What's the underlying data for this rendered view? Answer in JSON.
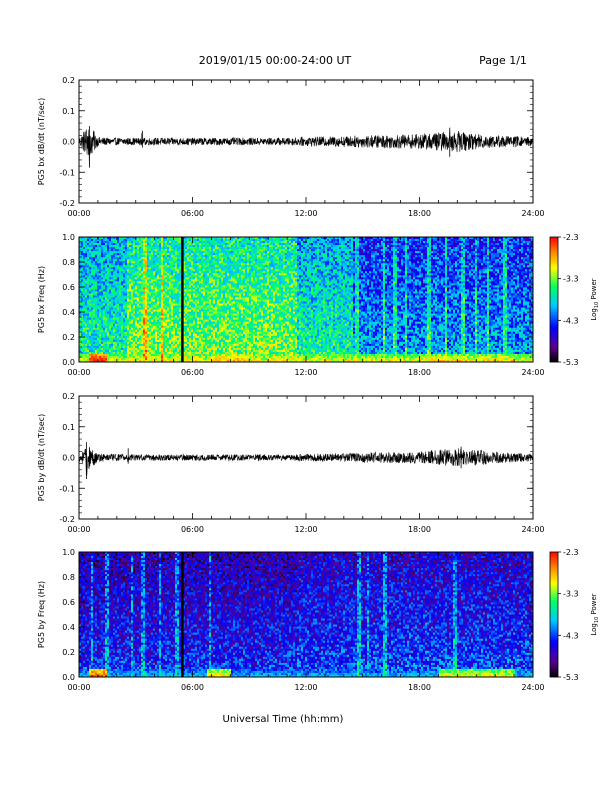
{
  "header": {
    "title": "2019/01/15  00:00-24:00 UT",
    "page": "Page 1/1"
  },
  "x_axis": {
    "label": "Universal Time (hh:mm)",
    "ticks": [
      "00:00",
      "06:00",
      "12:00",
      "18:00",
      "24:00"
    ],
    "range_hours": [
      0,
      24
    ]
  },
  "colorbar": {
    "label": "Log10 Power",
    "label_base": "Log",
    "label_sub": "10",
    "label_rest": " Power",
    "ticks": [
      "-2.3",
      "-3.3",
      "-4.3",
      "-5.3"
    ],
    "range": [
      -5.3,
      -2.3
    ],
    "colormap": [
      "#000000",
      "#5a008c",
      "#0000ff",
      "#00c8ff",
      "#00ff64",
      "#ffff00",
      "#ff8c00",
      "#ff0000"
    ]
  },
  "chart_data": [
    {
      "type": "line",
      "ylabel": "PG5 bx dB/dt (nT/sec)",
      "yticks": [
        "0.2",
        "0.1",
        "0.0",
        "-0.1",
        "-0.2"
      ],
      "ylim": [
        -0.2,
        0.2
      ],
      "x_hours": [
        0,
        0.5,
        1,
        1.5,
        2,
        3,
        4,
        5,
        6,
        7,
        8,
        9,
        10,
        11,
        12,
        13,
        14,
        15,
        16,
        17,
        18,
        19,
        20,
        21,
        22,
        23,
        24
      ],
      "amplitude": [
        0.012,
        0.06,
        0.015,
        0.012,
        0.012,
        0.012,
        0.012,
        0.012,
        0.012,
        0.012,
        0.012,
        0.012,
        0.012,
        0.012,
        0.015,
        0.016,
        0.018,
        0.02,
        0.022,
        0.022,
        0.025,
        0.03,
        0.035,
        0.025,
        0.02,
        0.018,
        0.015
      ],
      "spikes": [
        {
          "x": 0.55,
          "y_min": -0.085,
          "y_max": 0.05
        },
        {
          "x": 3.35,
          "y_min": -0.02,
          "y_max": 0.035
        },
        {
          "x": 19.6,
          "y_min": -0.05,
          "y_max": 0.045
        }
      ]
    },
    {
      "type": "heatmap",
      "ylabel": "PG5 bx Freq (Hz)",
      "yticks": [
        "1.0",
        "0.8",
        "0.6",
        "0.4",
        "0.2",
        "0.0"
      ],
      "ylim": [
        0,
        1.0
      ],
      "data_gap_hours": [
        5.4,
        5.5
      ],
      "background_level": -3.6,
      "band_boosts": [
        {
          "x_from": 2.5,
          "x_to": 11.5,
          "level": -3.3
        },
        {
          "x_from": 11.5,
          "x_to": 14.5,
          "level": -3.6
        },
        {
          "x_from": 14.5,
          "x_to": 24,
          "level": -4.0
        }
      ],
      "low_freq_enhancement": [
        {
          "x_from": 0.5,
          "x_to": 1.5,
          "level": -2.3
        },
        {
          "x_from": 7,
          "x_to": 9,
          "level": -2.8
        },
        {
          "x_from": 18,
          "x_to": 23,
          "level": -2.9
        }
      ],
      "vertical_streaks_hours": [
        3.5,
        4.4,
        14.7,
        16.1,
        16.7,
        17.3,
        18.5,
        19.4,
        20.3,
        21.0,
        21.6,
        22.5
      ]
    },
    {
      "type": "line",
      "ylabel": "PG5 by dB/dt (nT/sec)",
      "yticks": [
        "0.2",
        "0.1",
        "0.0",
        "-0.1",
        "-0.2"
      ],
      "ylim": [
        -0.2,
        0.2
      ],
      "x_hours": [
        0,
        0.5,
        1,
        1.5,
        2,
        3,
        4,
        5,
        6,
        7,
        8,
        9,
        10,
        11,
        12,
        13,
        14,
        15,
        16,
        17,
        18,
        19,
        20,
        21,
        22,
        23,
        24
      ],
      "amplitude": [
        0.012,
        0.04,
        0.015,
        0.012,
        0.012,
        0.01,
        0.01,
        0.01,
        0.01,
        0.01,
        0.01,
        0.01,
        0.01,
        0.01,
        0.012,
        0.013,
        0.014,
        0.016,
        0.018,
        0.018,
        0.02,
        0.025,
        0.03,
        0.025,
        0.02,
        0.015,
        0.012
      ],
      "spikes": [
        {
          "x": 0.4,
          "y_min": -0.07,
          "y_max": 0.05
        },
        {
          "x": 2.6,
          "y_min": -0.02,
          "y_max": 0.03
        },
        {
          "x": 20.2,
          "y_min": -0.035,
          "y_max": 0.035
        }
      ]
    },
    {
      "type": "heatmap",
      "ylabel": "PG5 by Freq (Hz)",
      "yticks": [
        "1.0",
        "0.8",
        "0.6",
        "0.4",
        "0.2",
        "0.0"
      ],
      "ylim": [
        0,
        1.0
      ],
      "data_gap_hours": [
        5.4,
        5.5
      ],
      "background_level": -4.5,
      "band_boosts": [
        {
          "x_from": 0,
          "x_to": 11.5,
          "level": -4.4
        },
        {
          "x_from": 11.5,
          "x_to": 24,
          "level": -4.3
        }
      ],
      "low_freq_enhancement": [
        {
          "x_from": 0.5,
          "x_to": 1.5,
          "level": -2.5
        },
        {
          "x_from": 6.8,
          "x_to": 8,
          "level": -2.9
        },
        {
          "x_from": 19,
          "x_to": 23,
          "level": -3.0
        }
      ],
      "vertical_streaks_hours": [
        0.7,
        1.5,
        2.8,
        3.4,
        4.3,
        5.2,
        6.9,
        14.8,
        15.3,
        16.2,
        19.9
      ]
    }
  ]
}
